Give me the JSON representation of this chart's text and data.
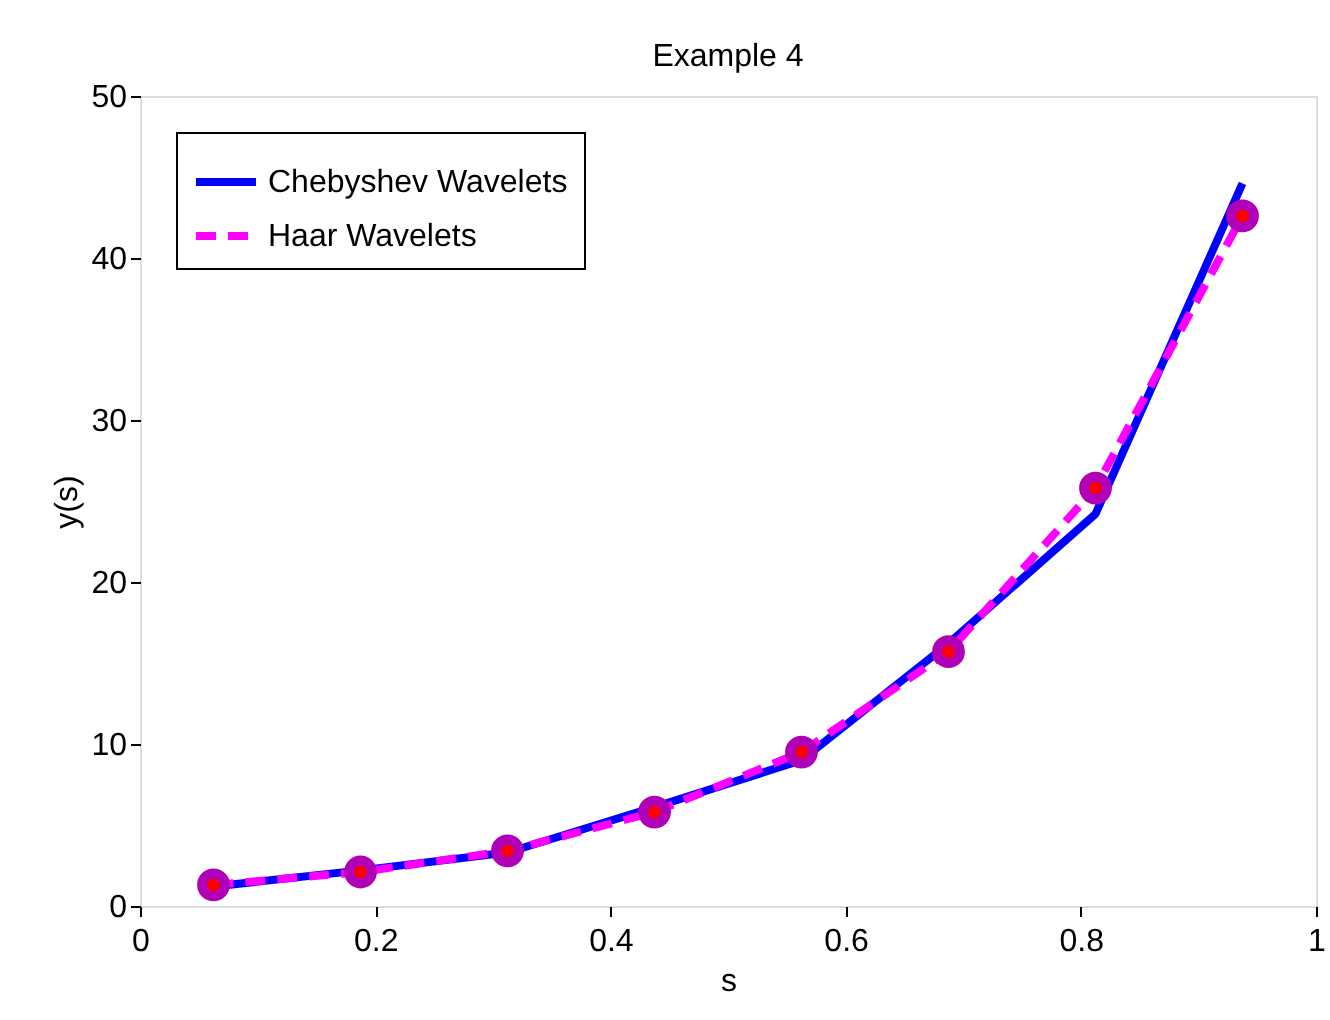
{
  "chart_data": {
    "type": "line",
    "title": "Example 4",
    "xlabel": "s",
    "ylabel": "y(s)",
    "x": [
      0.0625,
      0.1875,
      0.3125,
      0.4375,
      0.5625,
      0.6875,
      0.8125,
      0.9375
    ],
    "series": [
      {
        "name": "Chebyshev Wavelets",
        "color": "#0000ff",
        "line_style": "solid",
        "marker": "none",
        "values": [
          1.2,
          2.2,
          3.3,
          6.1,
          9.0,
          16.2,
          24.2,
          44.6
        ]
      },
      {
        "name": "Haar Wavelets",
        "color": "#ff00ff",
        "line_style": "dashed",
        "marker": "circle",
        "values": [
          1.3,
          2.1,
          3.4,
          5.8,
          9.5,
          15.7,
          25.8,
          42.6
        ]
      }
    ],
    "xlim": [
      0,
      1
    ],
    "xticks": [
      0,
      0.2,
      0.4,
      0.6,
      0.8,
      1
    ],
    "ylim": [
      0,
      50
    ],
    "yticks": [
      0,
      10,
      20,
      30,
      40,
      50
    ],
    "grid": false,
    "legend": "top left"
  }
}
